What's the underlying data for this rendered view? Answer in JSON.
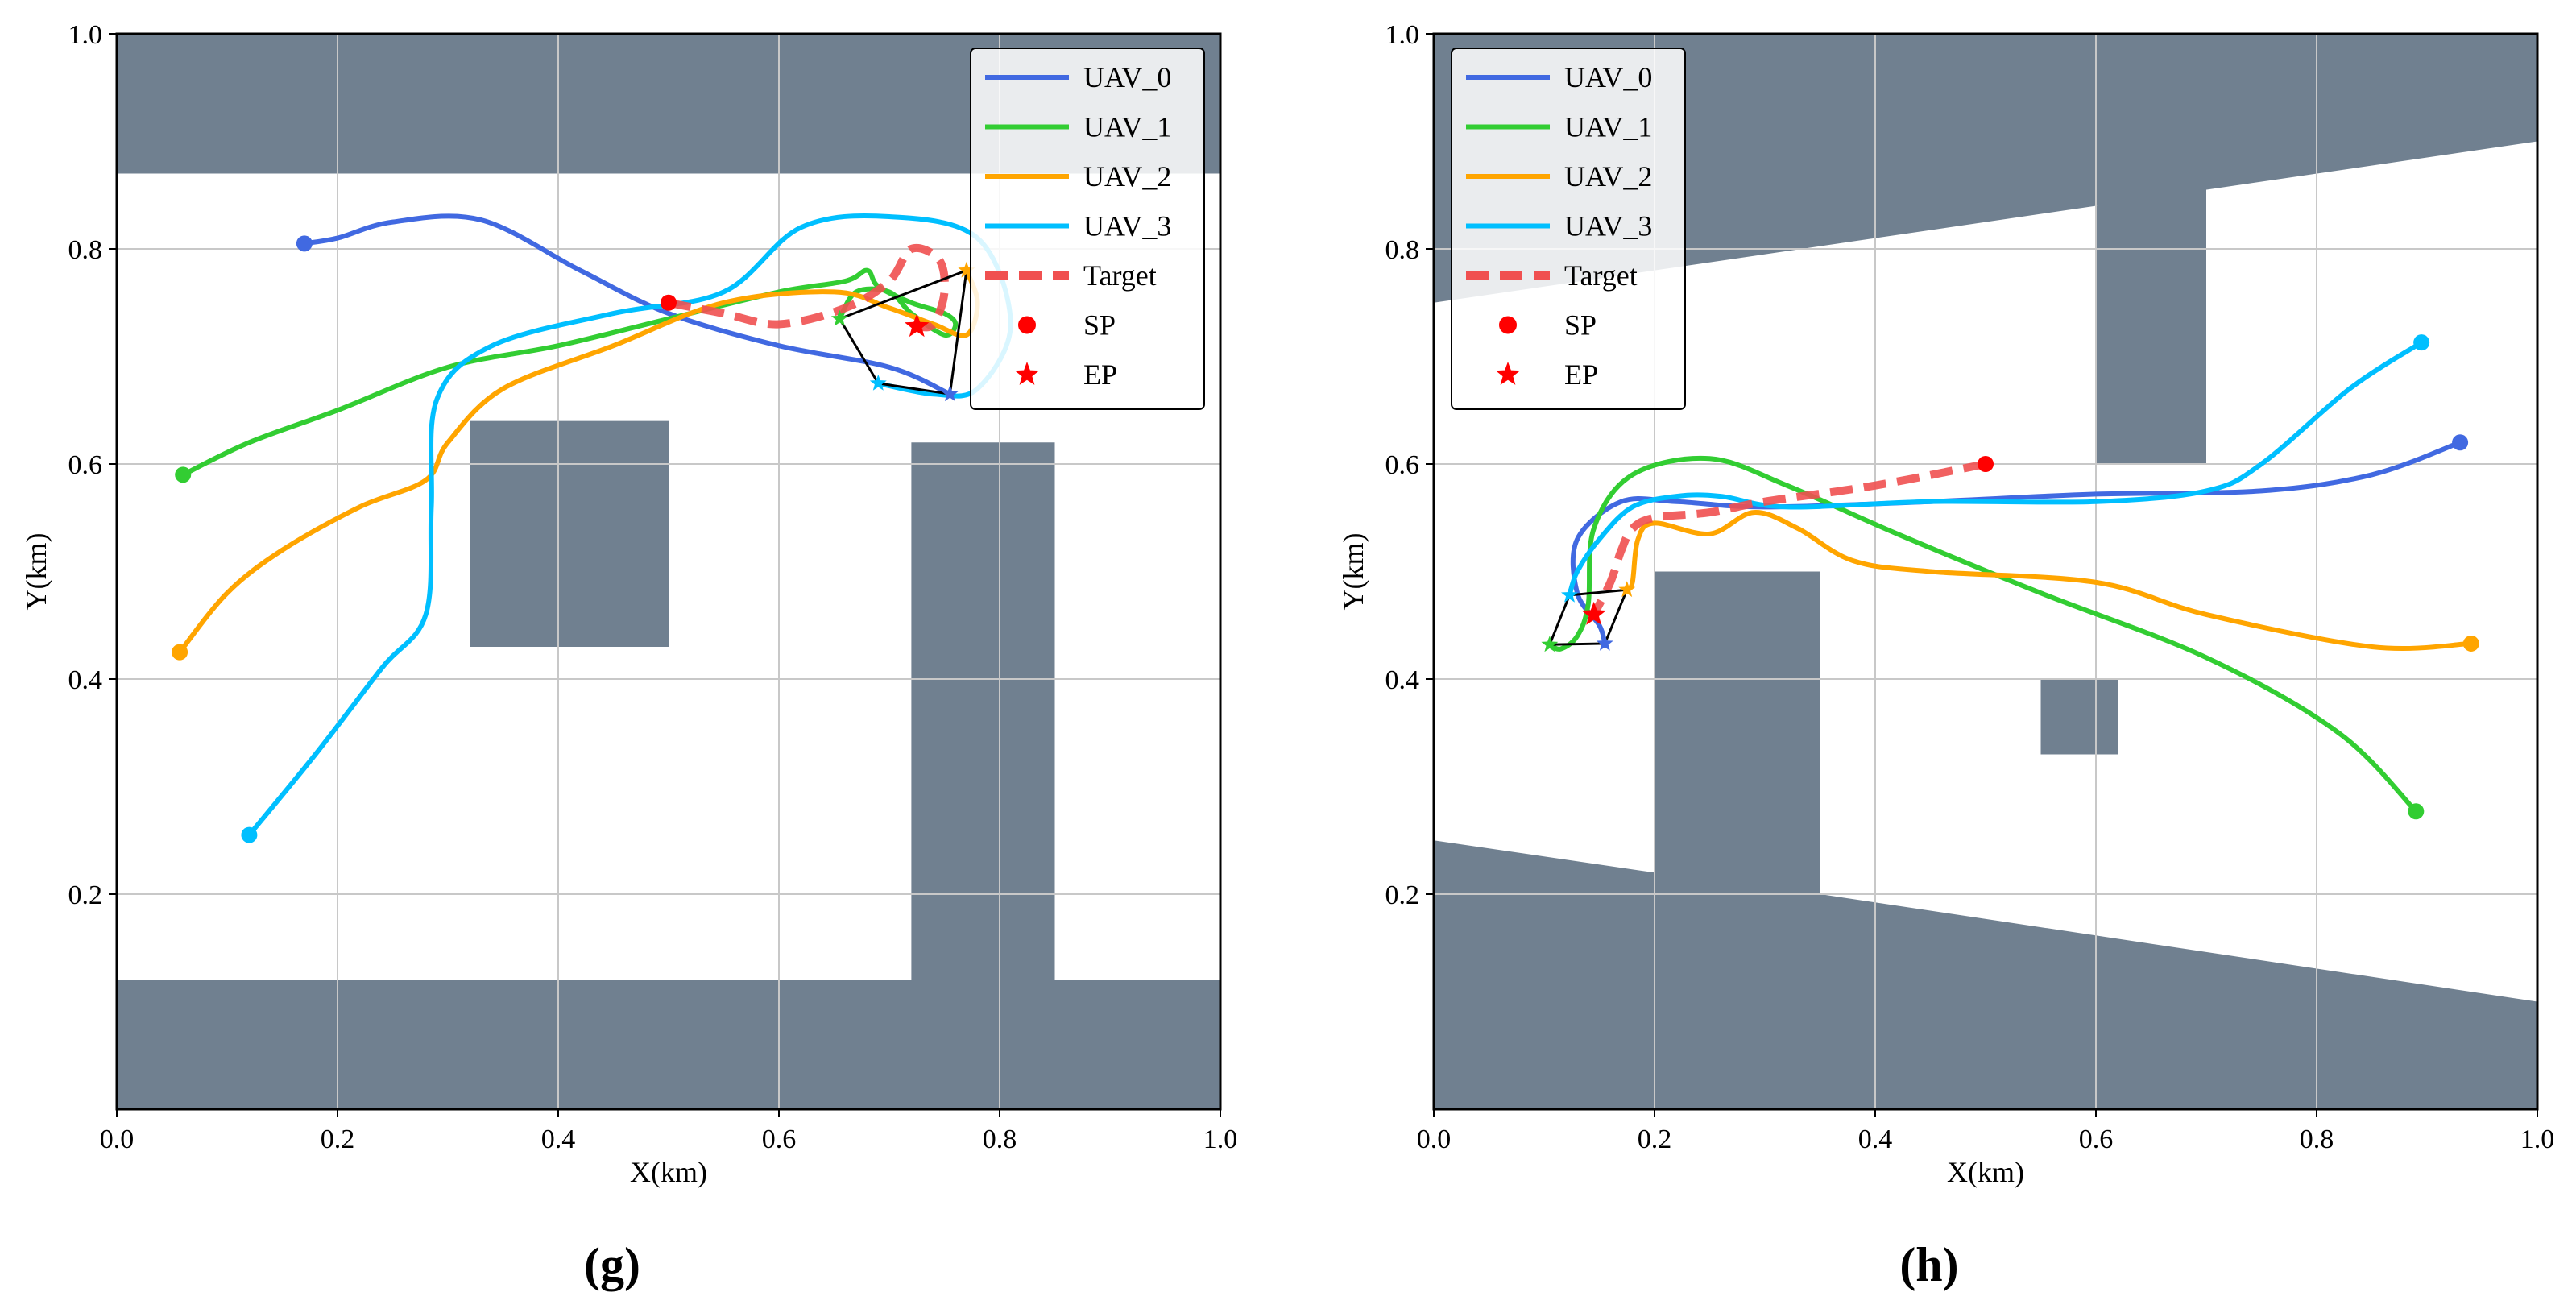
{
  "colors": {
    "obstacle": "#708090",
    "grid": "#c8c8c8",
    "UAV_0": "#4169e1",
    "UAV_1": "#32cd32",
    "UAV_2": "#ffa500",
    "UAV_3": "#00bfff",
    "Target": "#f05050",
    "SP": "#ff0000",
    "EP": "#ff0000",
    "formation": "#000000"
  },
  "chart_data": [
    {
      "type": "line",
      "panel_label": "(g)",
      "xlabel": "X(km)",
      "ylabel": "Y(km)",
      "xlim": [
        0,
        1
      ],
      "ylim": [
        0,
        1
      ],
      "xticks": [
        "0.0",
        "0.2",
        "0.4",
        "0.6",
        "0.8",
        "1.0"
      ],
      "yticks": [
        "0.2",
        "0.4",
        "0.6",
        "0.8",
        "1.0"
      ],
      "grid": true,
      "legend_position": "top-right",
      "legend": [
        "UAV_0",
        "UAV_1",
        "UAV_2",
        "UAV_3",
        "Target",
        "SP",
        "EP"
      ],
      "obstacles": [
        [
          [
            0,
            0.87
          ],
          [
            1,
            0.87
          ],
          [
            1,
            1
          ],
          [
            0,
            1
          ]
        ],
        [
          [
            0,
            0
          ],
          [
            1,
            0
          ],
          [
            1,
            0.12
          ],
          [
            0,
            0.12
          ]
        ],
        [
          [
            0.72,
            0.12
          ],
          [
            0.85,
            0.12
          ],
          [
            0.85,
            0.62
          ],
          [
            0.72,
            0.62
          ]
        ],
        [
          [
            0.32,
            0.43
          ],
          [
            0.5,
            0.43
          ],
          [
            0.5,
            0.64
          ],
          [
            0.32,
            0.64
          ]
        ]
      ],
      "series": [
        {
          "name": "UAV_0",
          "start": [
            0.17,
            0.805
          ],
          "end": [
            0.755,
            0.665
          ],
          "points": [
            [
              0.17,
              0.805
            ],
            [
              0.2,
              0.81
            ],
            [
              0.25,
              0.825
            ],
            [
              0.33,
              0.827
            ],
            [
              0.42,
              0.78
            ],
            [
              0.5,
              0.74
            ],
            [
              0.6,
              0.71
            ],
            [
              0.7,
              0.69
            ],
            [
              0.755,
              0.665
            ]
          ]
        },
        {
          "name": "UAV_1",
          "start": [
            0.06,
            0.59
          ],
          "end": [
            0.655,
            0.735
          ],
          "points": [
            [
              0.06,
              0.59
            ],
            [
              0.12,
              0.62
            ],
            [
              0.2,
              0.65
            ],
            [
              0.3,
              0.69
            ],
            [
              0.4,
              0.71
            ],
            [
              0.5,
              0.735
            ],
            [
              0.6,
              0.76
            ],
            [
              0.66,
              0.77
            ],
            [
              0.68,
              0.78
            ],
            [
              0.69,
              0.765
            ],
            [
              0.72,
              0.75
            ],
            [
              0.75,
              0.74
            ],
            [
              0.76,
              0.73
            ],
            [
              0.75,
              0.72
            ],
            [
              0.72,
              0.74
            ],
            [
              0.7,
              0.76
            ],
            [
              0.67,
              0.76
            ],
            [
              0.655,
              0.735
            ]
          ]
        },
        {
          "name": "UAV_2",
          "start": [
            0.057,
            0.425
          ],
          "end": [
            0.77,
            0.78
          ],
          "points": [
            [
              0.057,
              0.425
            ],
            [
              0.1,
              0.48
            ],
            [
              0.15,
              0.52
            ],
            [
              0.22,
              0.56
            ],
            [
              0.28,
              0.585
            ],
            [
              0.3,
              0.62
            ],
            [
              0.35,
              0.67
            ],
            [
              0.45,
              0.71
            ],
            [
              0.55,
              0.75
            ],
            [
              0.65,
              0.76
            ],
            [
              0.7,
              0.745
            ],
            [
              0.74,
              0.73
            ],
            [
              0.77,
              0.72
            ],
            [
              0.78,
              0.75
            ],
            [
              0.77,
              0.78
            ]
          ]
        },
        {
          "name": "UAV_3",
          "start": [
            0.12,
            0.255
          ],
          "end": [
            0.69,
            0.675
          ],
          "points": [
            [
              0.12,
              0.255
            ],
            [
              0.18,
              0.33
            ],
            [
              0.24,
              0.41
            ],
            [
              0.28,
              0.46
            ],
            [
              0.285,
              0.56
            ],
            [
              0.29,
              0.66
            ],
            [
              0.34,
              0.71
            ],
            [
              0.45,
              0.74
            ],
            [
              0.55,
              0.76
            ],
            [
              0.62,
              0.82
            ],
            [
              0.7,
              0.83
            ],
            [
              0.78,
              0.81
            ],
            [
              0.81,
              0.73
            ],
            [
              0.78,
              0.67
            ],
            [
              0.74,
              0.665
            ],
            [
              0.69,
              0.675
            ]
          ]
        },
        {
          "name": "Target",
          "dashed": true,
          "start": [
            0.5,
            0.75
          ],
          "end": [
            0.725,
            0.728
          ],
          "points": [
            [
              0.5,
              0.75
            ],
            [
              0.55,
              0.74
            ],
            [
              0.6,
              0.73
            ],
            [
              0.66,
              0.745
            ],
            [
              0.7,
              0.77
            ],
            [
              0.72,
              0.8
            ],
            [
              0.745,
              0.79
            ],
            [
              0.75,
              0.76
            ],
            [
              0.74,
              0.73
            ],
            [
              0.725,
              0.728
            ]
          ]
        }
      ],
      "ep_markers": [
        {
          "name": "UAV_0",
          "x": 0.755,
          "y": 0.665
        },
        {
          "name": "UAV_1",
          "x": 0.655,
          "y": 0.735
        },
        {
          "name": "UAV_2",
          "x": 0.77,
          "y": 0.78
        },
        {
          "name": "UAV_3",
          "x": 0.69,
          "y": 0.675
        }
      ],
      "formation": [
        [
          0.655,
          0.735
        ],
        [
          0.77,
          0.78
        ],
        [
          0.755,
          0.665
        ],
        [
          0.69,
          0.675
        ],
        [
          0.655,
          0.735
        ]
      ]
    },
    {
      "type": "line",
      "panel_label": "(h)",
      "xlabel": "X(km)",
      "ylabel": "Y(km)",
      "xlim": [
        0,
        1
      ],
      "ylim": [
        0,
        1
      ],
      "xticks": [
        "0.0",
        "0.2",
        "0.4",
        "0.6",
        "0.8",
        "1.0"
      ],
      "yticks": [
        "0.2",
        "0.4",
        "0.6",
        "0.8",
        "1.0"
      ],
      "grid": true,
      "legend_position": "top-left",
      "legend": [
        "UAV_0",
        "UAV_1",
        "UAV_2",
        "UAV_3",
        "Target",
        "SP",
        "EP"
      ],
      "obstacles": [
        [
          [
            0,
            0.75
          ],
          [
            1,
            0.9
          ],
          [
            1,
            1
          ],
          [
            0,
            1
          ]
        ],
        [
          [
            0,
            0
          ],
          [
            1,
            0
          ],
          [
            1,
            0.1
          ],
          [
            0.35,
            0.2
          ],
          [
            0.35,
            0.5
          ],
          [
            0.2,
            0.5
          ],
          [
            0.2,
            0.22
          ],
          [
            0,
            0.25
          ]
        ],
        [
          [
            0.6,
            0.6
          ],
          [
            0.7,
            0.6
          ],
          [
            0.7,
            0.86
          ],
          [
            0.6,
            0.84
          ]
        ],
        [
          [
            0.55,
            0.33
          ],
          [
            0.62,
            0.33
          ],
          [
            0.62,
            0.4
          ],
          [
            0.55,
            0.4
          ]
        ]
      ],
      "series": [
        {
          "name": "UAV_0",
          "start": [
            0.93,
            0.62
          ],
          "end": [
            0.155,
            0.433
          ],
          "points": [
            [
              0.93,
              0.62
            ],
            [
              0.85,
              0.59
            ],
            [
              0.75,
              0.575
            ],
            [
              0.6,
              0.572
            ],
            [
              0.45,
              0.565
            ],
            [
              0.3,
              0.56
            ],
            [
              0.22,
              0.565
            ],
            [
              0.17,
              0.565
            ],
            [
              0.13,
              0.53
            ],
            [
              0.13,
              0.48
            ],
            [
              0.15,
              0.45
            ],
            [
              0.155,
              0.433
            ]
          ]
        },
        {
          "name": "UAV_1",
          "start": [
            0.89,
            0.277
          ],
          "end": [
            0.105,
            0.432
          ],
          "points": [
            [
              0.89,
              0.277
            ],
            [
              0.82,
              0.35
            ],
            [
              0.7,
              0.42
            ],
            [
              0.55,
              0.48
            ],
            [
              0.42,
              0.535
            ],
            [
              0.32,
              0.58
            ],
            [
              0.25,
              0.605
            ],
            [
              0.18,
              0.59
            ],
            [
              0.145,
              0.54
            ],
            [
              0.14,
              0.47
            ],
            [
              0.13,
              0.44
            ],
            [
              0.115,
              0.428
            ],
            [
              0.105,
              0.432
            ]
          ]
        },
        {
          "name": "UAV_2",
          "start": [
            0.94,
            0.433
          ],
          "end": [
            0.175,
            0.483
          ],
          "points": [
            [
              0.94,
              0.433
            ],
            [
              0.85,
              0.43
            ],
            [
              0.7,
              0.46
            ],
            [
              0.6,
              0.49
            ],
            [
              0.45,
              0.5
            ],
            [
              0.38,
              0.51
            ],
            [
              0.33,
              0.54
            ],
            [
              0.29,
              0.555
            ],
            [
              0.25,
              0.535
            ],
            [
              0.2,
              0.545
            ],
            [
              0.185,
              0.53
            ],
            [
              0.18,
              0.49
            ],
            [
              0.175,
              0.483
            ]
          ]
        },
        {
          "name": "UAV_3",
          "start": [
            0.895,
            0.713
          ],
          "end": [
            0.123,
            0.478
          ],
          "points": [
            [
              0.895,
              0.713
            ],
            [
              0.83,
              0.67
            ],
            [
              0.75,
              0.6
            ],
            [
              0.7,
              0.575
            ],
            [
              0.6,
              0.565
            ],
            [
              0.45,
              0.565
            ],
            [
              0.32,
              0.56
            ],
            [
              0.26,
              0.57
            ],
            [
              0.22,
              0.57
            ],
            [
              0.18,
              0.56
            ],
            [
              0.15,
              0.53
            ],
            [
              0.13,
              0.5
            ],
            [
              0.123,
              0.478
            ]
          ]
        },
        {
          "name": "Target",
          "dashed": true,
          "start": [
            0.5,
            0.6
          ],
          "end": [
            0.145,
            0.46
          ],
          "points": [
            [
              0.5,
              0.6
            ],
            [
              0.4,
              0.58
            ],
            [
              0.3,
              0.565
            ],
            [
              0.25,
              0.555
            ],
            [
              0.2,
              0.55
            ],
            [
              0.18,
              0.54
            ],
            [
              0.17,
              0.52
            ],
            [
              0.16,
              0.49
            ],
            [
              0.145,
              0.46
            ]
          ]
        }
      ],
      "ep_markers": [
        {
          "name": "UAV_0",
          "x": 0.155,
          "y": 0.433
        },
        {
          "name": "UAV_1",
          "x": 0.105,
          "y": 0.432
        },
        {
          "name": "UAV_2",
          "x": 0.175,
          "y": 0.483
        },
        {
          "name": "UAV_3",
          "x": 0.123,
          "y": 0.478
        }
      ],
      "formation": [
        [
          0.105,
          0.432
        ],
        [
          0.155,
          0.433
        ],
        [
          0.175,
          0.483
        ],
        [
          0.123,
          0.478
        ],
        [
          0.105,
          0.432
        ]
      ]
    }
  ]
}
